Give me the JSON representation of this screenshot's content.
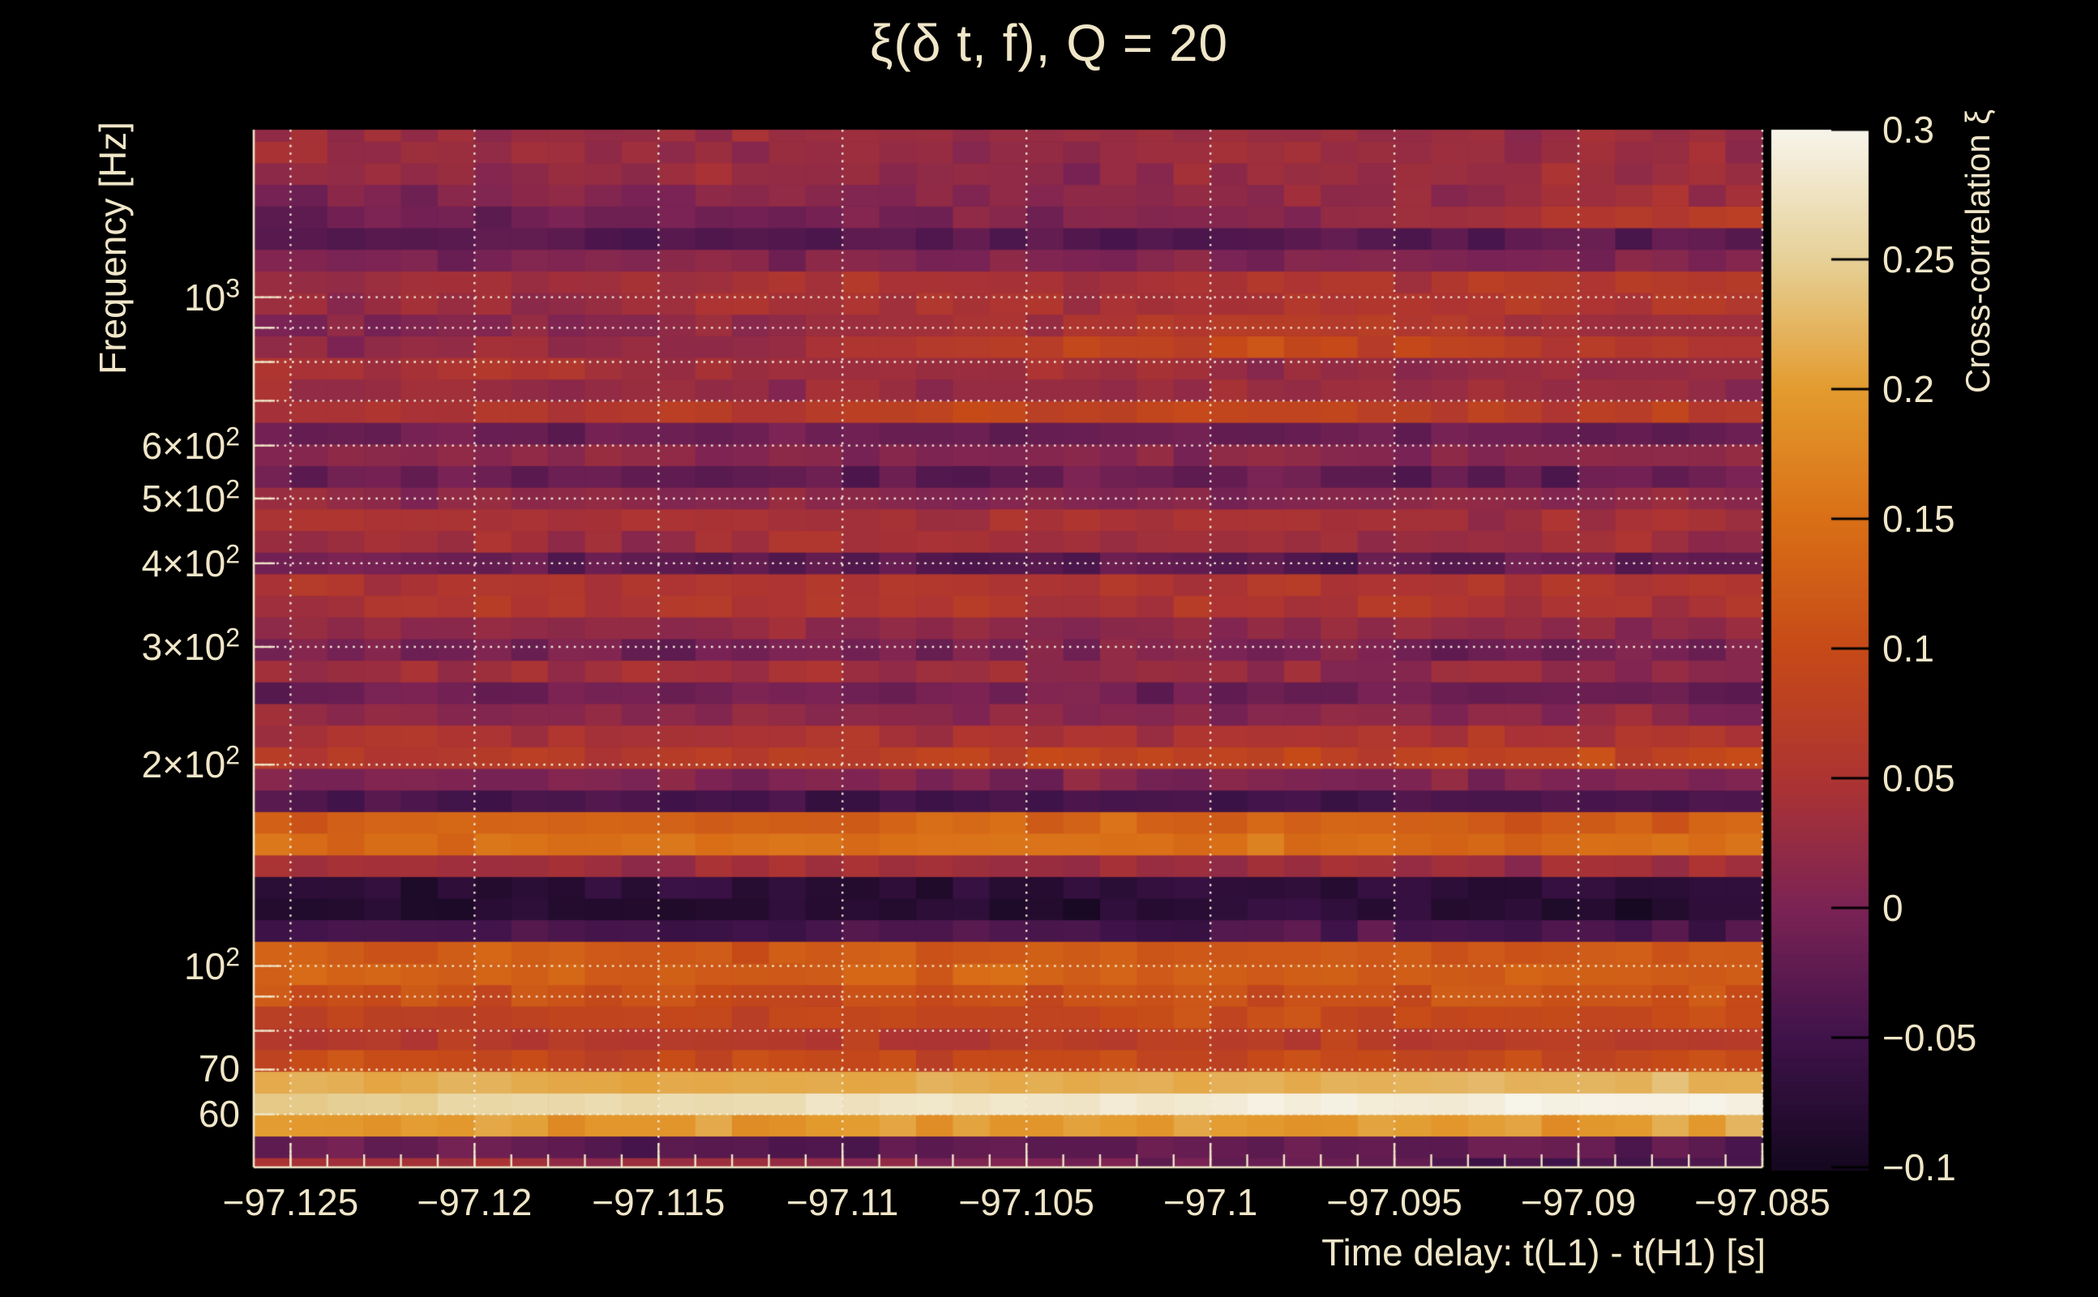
{
  "chart_data": {
    "type": "heatmap",
    "title": "ξ(δ t, f), Q = 20",
    "xlabel": "Time delay: t(L1) - t(H1) [s]",
    "ylabel": "Frequency [Hz]",
    "colorbar_label": "Cross-correlation ξ",
    "x_range": [
      -97.126,
      -97.085
    ],
    "y_range": [
      50,
      1780
    ],
    "y_scale": "log",
    "z_range": [
      -0.1,
      0.3
    ],
    "n_cols": 41,
    "x_minor_step": 0.001,
    "x_ticks": [
      {
        "v": -97.125,
        "label": "−97.125"
      },
      {
        "v": -97.12,
        "label": "−97.12"
      },
      {
        "v": -97.115,
        "label": "−97.115"
      },
      {
        "v": -97.11,
        "label": "−97.11"
      },
      {
        "v": -97.105,
        "label": "−97.105"
      },
      {
        "v": -97.1,
        "label": "−97.1"
      },
      {
        "v": -97.095,
        "label": "−97.095"
      },
      {
        "v": -97.09,
        "label": "−97.09"
      },
      {
        "v": -97.085,
        "label": "−97.085"
      }
    ],
    "y_ticks": [
      {
        "v": 1000,
        "base": "10",
        "sup": "3"
      },
      {
        "v": 600,
        "base": "6×10",
        "sup": "2"
      },
      {
        "v": 500,
        "base": "5×10",
        "sup": "2"
      },
      {
        "v": 400,
        "base": "4×10",
        "sup": "2"
      },
      {
        "v": 300,
        "base": "3×10",
        "sup": "2"
      },
      {
        "v": 200,
        "base": "2×10",
        "sup": "2"
      },
      {
        "v": 100,
        "base": "10",
        "sup": "2"
      },
      {
        "v": 70,
        "base": "70",
        "sup": ""
      },
      {
        "v": 60,
        "base": "60",
        "sup": ""
      }
    ],
    "gridlines_y": [
      60,
      70,
      80,
      90,
      100,
      200,
      300,
      400,
      500,
      600,
      700,
      800,
      900,
      1000
    ],
    "colorbar_ticks": [
      {
        "v": 0.3,
        "label": "0.3"
      },
      {
        "v": 0.25,
        "label": "0.25"
      },
      {
        "v": 0.2,
        "label": "0.2"
      },
      {
        "v": 0.15,
        "label": "0.15"
      },
      {
        "v": 0.1,
        "label": "0.1"
      },
      {
        "v": 0.05,
        "label": "0.05"
      },
      {
        "v": 0,
        "label": "0"
      },
      {
        "v": -0.05,
        "label": "−0.05"
      },
      {
        "v": -0.1,
        "label": "−0.1"
      }
    ],
    "colormap": [
      {
        "v": -0.1,
        "c": "#150820"
      },
      {
        "v": -0.05,
        "c": "#3f134a"
      },
      {
        "v": 0.0,
        "c": "#7b2355"
      },
      {
        "v": 0.05,
        "c": "#ad3432"
      },
      {
        "v": 0.1,
        "c": "#c64a18"
      },
      {
        "v": 0.15,
        "c": "#d96f17"
      },
      {
        "v": 0.2,
        "c": "#e39b2e"
      },
      {
        "v": 0.25,
        "c": "#e6d096"
      },
      {
        "v": 0.3,
        "c": "#f7f4ea"
      }
    ],
    "noise_sigma": 0.011,
    "rows": [
      {
        "f_lo": 50.0,
        "f_hi": 51.7,
        "xi": [
          0.045,
          0.02,
          -0.02,
          -0.055
        ]
      },
      {
        "f_lo": 51.7,
        "f_hi": 55.7,
        "xi": [
          -0.022,
          -0.02,
          -0.02,
          -0.028
        ]
      },
      {
        "f_lo": 55.7,
        "f_hi": 60.0,
        "xi": [
          0.195,
          0.198,
          0.2,
          0.2
        ]
      },
      {
        "f_lo": 60.0,
        "f_hi": 64.6,
        "xi": [
          0.245,
          0.272,
          0.288,
          0.298
        ]
      },
      {
        "f_lo": 64.6,
        "f_hi": 69.6,
        "xi": [
          0.215,
          0.215,
          0.218,
          0.225
        ]
      },
      {
        "f_lo": 69.6,
        "f_hi": 75.0,
        "xi": [
          0.1,
          0.095,
          0.09,
          0.095
        ]
      },
      {
        "f_lo": 75.0,
        "f_hi": 80.8,
        "xi": [
          0.065,
          0.066,
          0.068,
          0.063
        ]
      },
      {
        "f_lo": 80.8,
        "f_hi": 87.1,
        "xi": [
          0.075,
          0.09,
          0.1,
          0.1
        ]
      },
      {
        "f_lo": 87.1,
        "f_hi": 93.8,
        "xi": [
          0.11,
          0.108,
          0.108,
          0.112
        ]
      },
      {
        "f_lo": 93.8,
        "f_hi": 101.0,
        "xi": [
          0.13,
          0.128,
          0.125,
          0.128
        ]
      },
      {
        "f_lo": 101.0,
        "f_hi": 108.9,
        "xi": [
          0.125,
          0.122,
          0.12,
          0.122
        ]
      },
      {
        "f_lo": 108.9,
        "f_hi": 117.3,
        "xi": [
          -0.04,
          -0.042,
          -0.038,
          -0.04
        ]
      },
      {
        "f_lo": 117.3,
        "f_hi": 126.3,
        "xi": [
          -0.075,
          -0.078,
          -0.073,
          -0.075
        ]
      },
      {
        "f_lo": 126.3,
        "f_hi": 136.1,
        "xi": [
          -0.07,
          -0.072,
          -0.068,
          -0.065
        ]
      },
      {
        "f_lo": 136.1,
        "f_hi": 146.6,
        "xi": [
          0.035,
          0.032,
          0.035,
          0.038
        ]
      },
      {
        "f_lo": 146.6,
        "f_hi": 158.0,
        "xi": [
          0.148,
          0.15,
          0.148,
          0.145
        ]
      },
      {
        "f_lo": 158.0,
        "f_hi": 170.2,
        "xi": [
          0.128,
          0.13,
          0.132,
          0.128
        ]
      },
      {
        "f_lo": 170.2,
        "f_hi": 183.3,
        "xi": [
          -0.045,
          -0.048,
          -0.045,
          -0.042
        ]
      },
      {
        "f_lo": 183.3,
        "f_hi": 197.5,
        "xi": [
          0.005,
          0.002,
          0.005,
          0.008
        ]
      },
      {
        "f_lo": 197.5,
        "f_hi": 212.8,
        "xi": [
          0.06,
          0.07,
          0.09,
          0.085
        ]
      },
      {
        "f_lo": 212.8,
        "f_hi": 229.2,
        "xi": [
          0.05,
          0.048,
          0.05,
          0.052
        ]
      },
      {
        "f_lo": 229.2,
        "f_hi": 246.9,
        "xi": [
          0.015,
          0.012,
          0.015,
          0.018
        ]
      },
      {
        "f_lo": 246.9,
        "f_hi": 266.0,
        "xi": [
          -0.015,
          -0.01,
          -0.008,
          -0.014
        ]
      },
      {
        "f_lo": 266.0,
        "f_hi": 286.6,
        "xi": [
          0.04,
          0.035,
          0.03,
          0.02
        ]
      },
      {
        "f_lo": 286.6,
        "f_hi": 308.7,
        "xi": [
          -0.005,
          -0.002,
          0.0,
          -0.005
        ]
      },
      {
        "f_lo": 308.7,
        "f_hi": 332.6,
        "xi": [
          0.02,
          0.024,
          0.022,
          0.02
        ]
      },
      {
        "f_lo": 332.6,
        "f_hi": 358.3,
        "xi": [
          0.05,
          0.055,
          0.052,
          0.048
        ]
      },
      {
        "f_lo": 358.3,
        "f_hi": 386.0,
        "xi": [
          0.055,
          0.052,
          0.055,
          0.058
        ]
      },
      {
        "f_lo": 386.0,
        "f_hi": 415.8,
        "xi": [
          -0.01,
          -0.025,
          -0.03,
          -0.02
        ]
      },
      {
        "f_lo": 415.8,
        "f_hi": 448.0,
        "xi": [
          0.03,
          0.035,
          0.032,
          0.028
        ]
      },
      {
        "f_lo": 448.0,
        "f_hi": 482.6,
        "xi": [
          0.045,
          0.048,
          0.045,
          0.04
        ]
      },
      {
        "f_lo": 482.6,
        "f_hi": 519.9,
        "xi": [
          0.015,
          0.012,
          0.015,
          0.018
        ]
      },
      {
        "f_lo": 519.9,
        "f_hi": 560.1,
        "xi": [
          -0.02,
          -0.022,
          -0.018,
          -0.02
        ]
      },
      {
        "f_lo": 560.1,
        "f_hi": 603.4,
        "xi": [
          0.01,
          0.012,
          0.01,
          0.012
        ]
      },
      {
        "f_lo": 603.4,
        "f_hi": 650.1,
        "xi": [
          -0.015,
          -0.012,
          -0.015,
          -0.01
        ]
      },
      {
        "f_lo": 650.1,
        "f_hi": 700.3,
        "xi": [
          0.045,
          0.075,
          0.085,
          0.065
        ]
      },
      {
        "f_lo": 700.3,
        "f_hi": 754.5,
        "xi": [
          0.03,
          0.028,
          0.03,
          0.025
        ]
      },
      {
        "f_lo": 754.5,
        "f_hi": 812.8,
        "xi": [
          0.05,
          0.04,
          0.03,
          0.02
        ]
      },
      {
        "f_lo": 812.8,
        "f_hi": 875.6,
        "xi": [
          0.02,
          0.03,
          0.1,
          0.05
        ]
      },
      {
        "f_lo": 875.6,
        "f_hi": 943.3,
        "xi": [
          0.005,
          0.02,
          0.07,
          0.03
        ]
      },
      {
        "f_lo": 943.3,
        "f_hi": 1016.2,
        "xi": [
          0.03,
          0.04,
          0.05,
          0.06
        ]
      },
      {
        "f_lo": 1016.2,
        "f_hi": 1094.8,
        "xi": [
          0.03,
          0.04,
          0.05,
          0.068
        ]
      },
      {
        "f_lo": 1094.8,
        "f_hi": 1179.4,
        "xi": [
          0.005,
          0.008,
          0.005,
          0.01
        ]
      },
      {
        "f_lo": 1179.4,
        "f_hi": 1270.6,
        "xi": [
          -0.03,
          -0.028,
          -0.032,
          -0.025
        ]
      },
      {
        "f_lo": 1270.6,
        "f_hi": 1368.8,
        "xi": [
          -0.015,
          -0.01,
          0.01,
          0.07
        ]
      },
      {
        "f_lo": 1368.8,
        "f_hi": 1474.6,
        "xi": [
          0.005,
          0.01,
          0.02,
          0.04
        ]
      },
      {
        "f_lo": 1474.6,
        "f_hi": 1588.6,
        "xi": [
          0.025,
          0.022,
          0.025,
          0.028
        ]
      },
      {
        "f_lo": 1588.6,
        "f_hi": 1711.4,
        "xi": [
          0.03,
          0.028,
          0.025,
          0.03
        ]
      },
      {
        "f_lo": 1711.4,
        "f_hi": 1780.0,
        "xi": [
          0.03,
          0.03,
          0.028,
          0.03
        ]
      }
    ],
    "colors": {
      "background": "#000000",
      "text": "#f0e6c8",
      "grid": "#f6f0dc",
      "axis": "#f0e6c8",
      "colorbar_tick": "#000000"
    }
  }
}
